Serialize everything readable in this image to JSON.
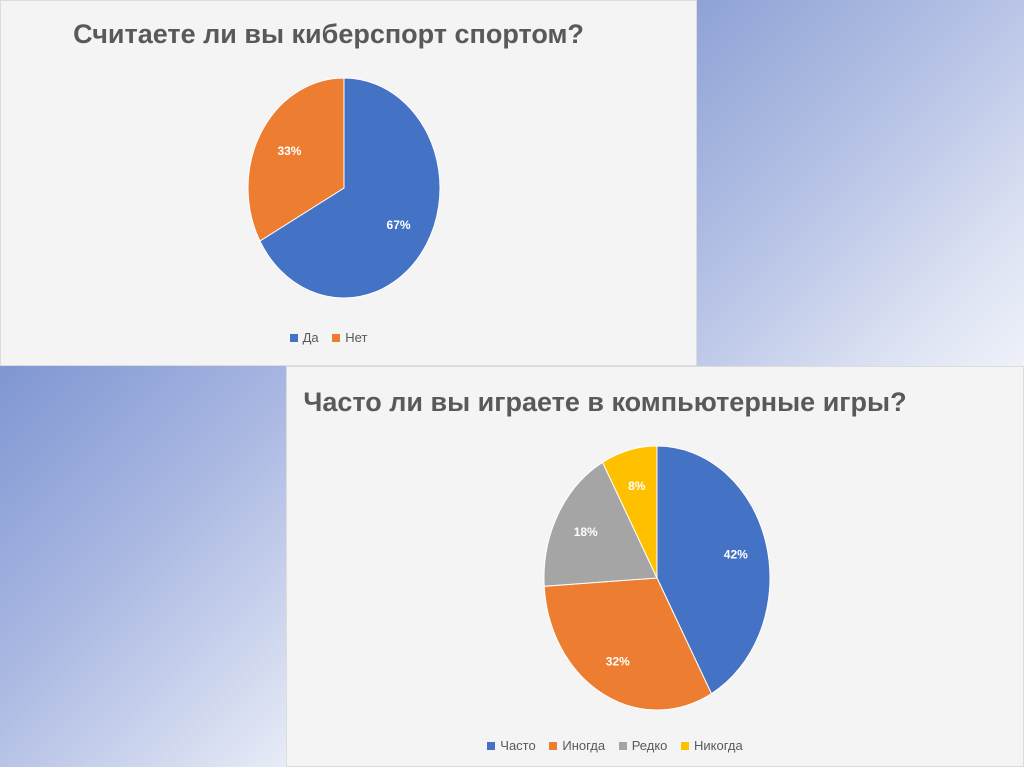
{
  "chart_data": [
    {
      "type": "pie",
      "title": "Считаете ли вы киберспорт спортом?",
      "categories": [
        "Да",
        "Нет"
      ],
      "values": [
        67,
        33
      ],
      "labels": [
        "67%",
        "33%"
      ],
      "colors": [
        "#4472c4",
        "#ed7d31"
      ],
      "legend": "bottom"
    },
    {
      "type": "pie",
      "title": "Часто ли вы играете в компьютерные игры?",
      "categories": [
        "Часто",
        "Иногда",
        "Редко",
        "Никогда"
      ],
      "values": [
        42,
        32,
        18,
        8
      ],
      "labels": [
        "42%",
        "32%",
        "18%",
        "8%"
      ],
      "colors": [
        "#4472c4",
        "#ed7d31",
        "#a5a5a5",
        "#ffc000"
      ],
      "legend": "bottom"
    }
  ]
}
